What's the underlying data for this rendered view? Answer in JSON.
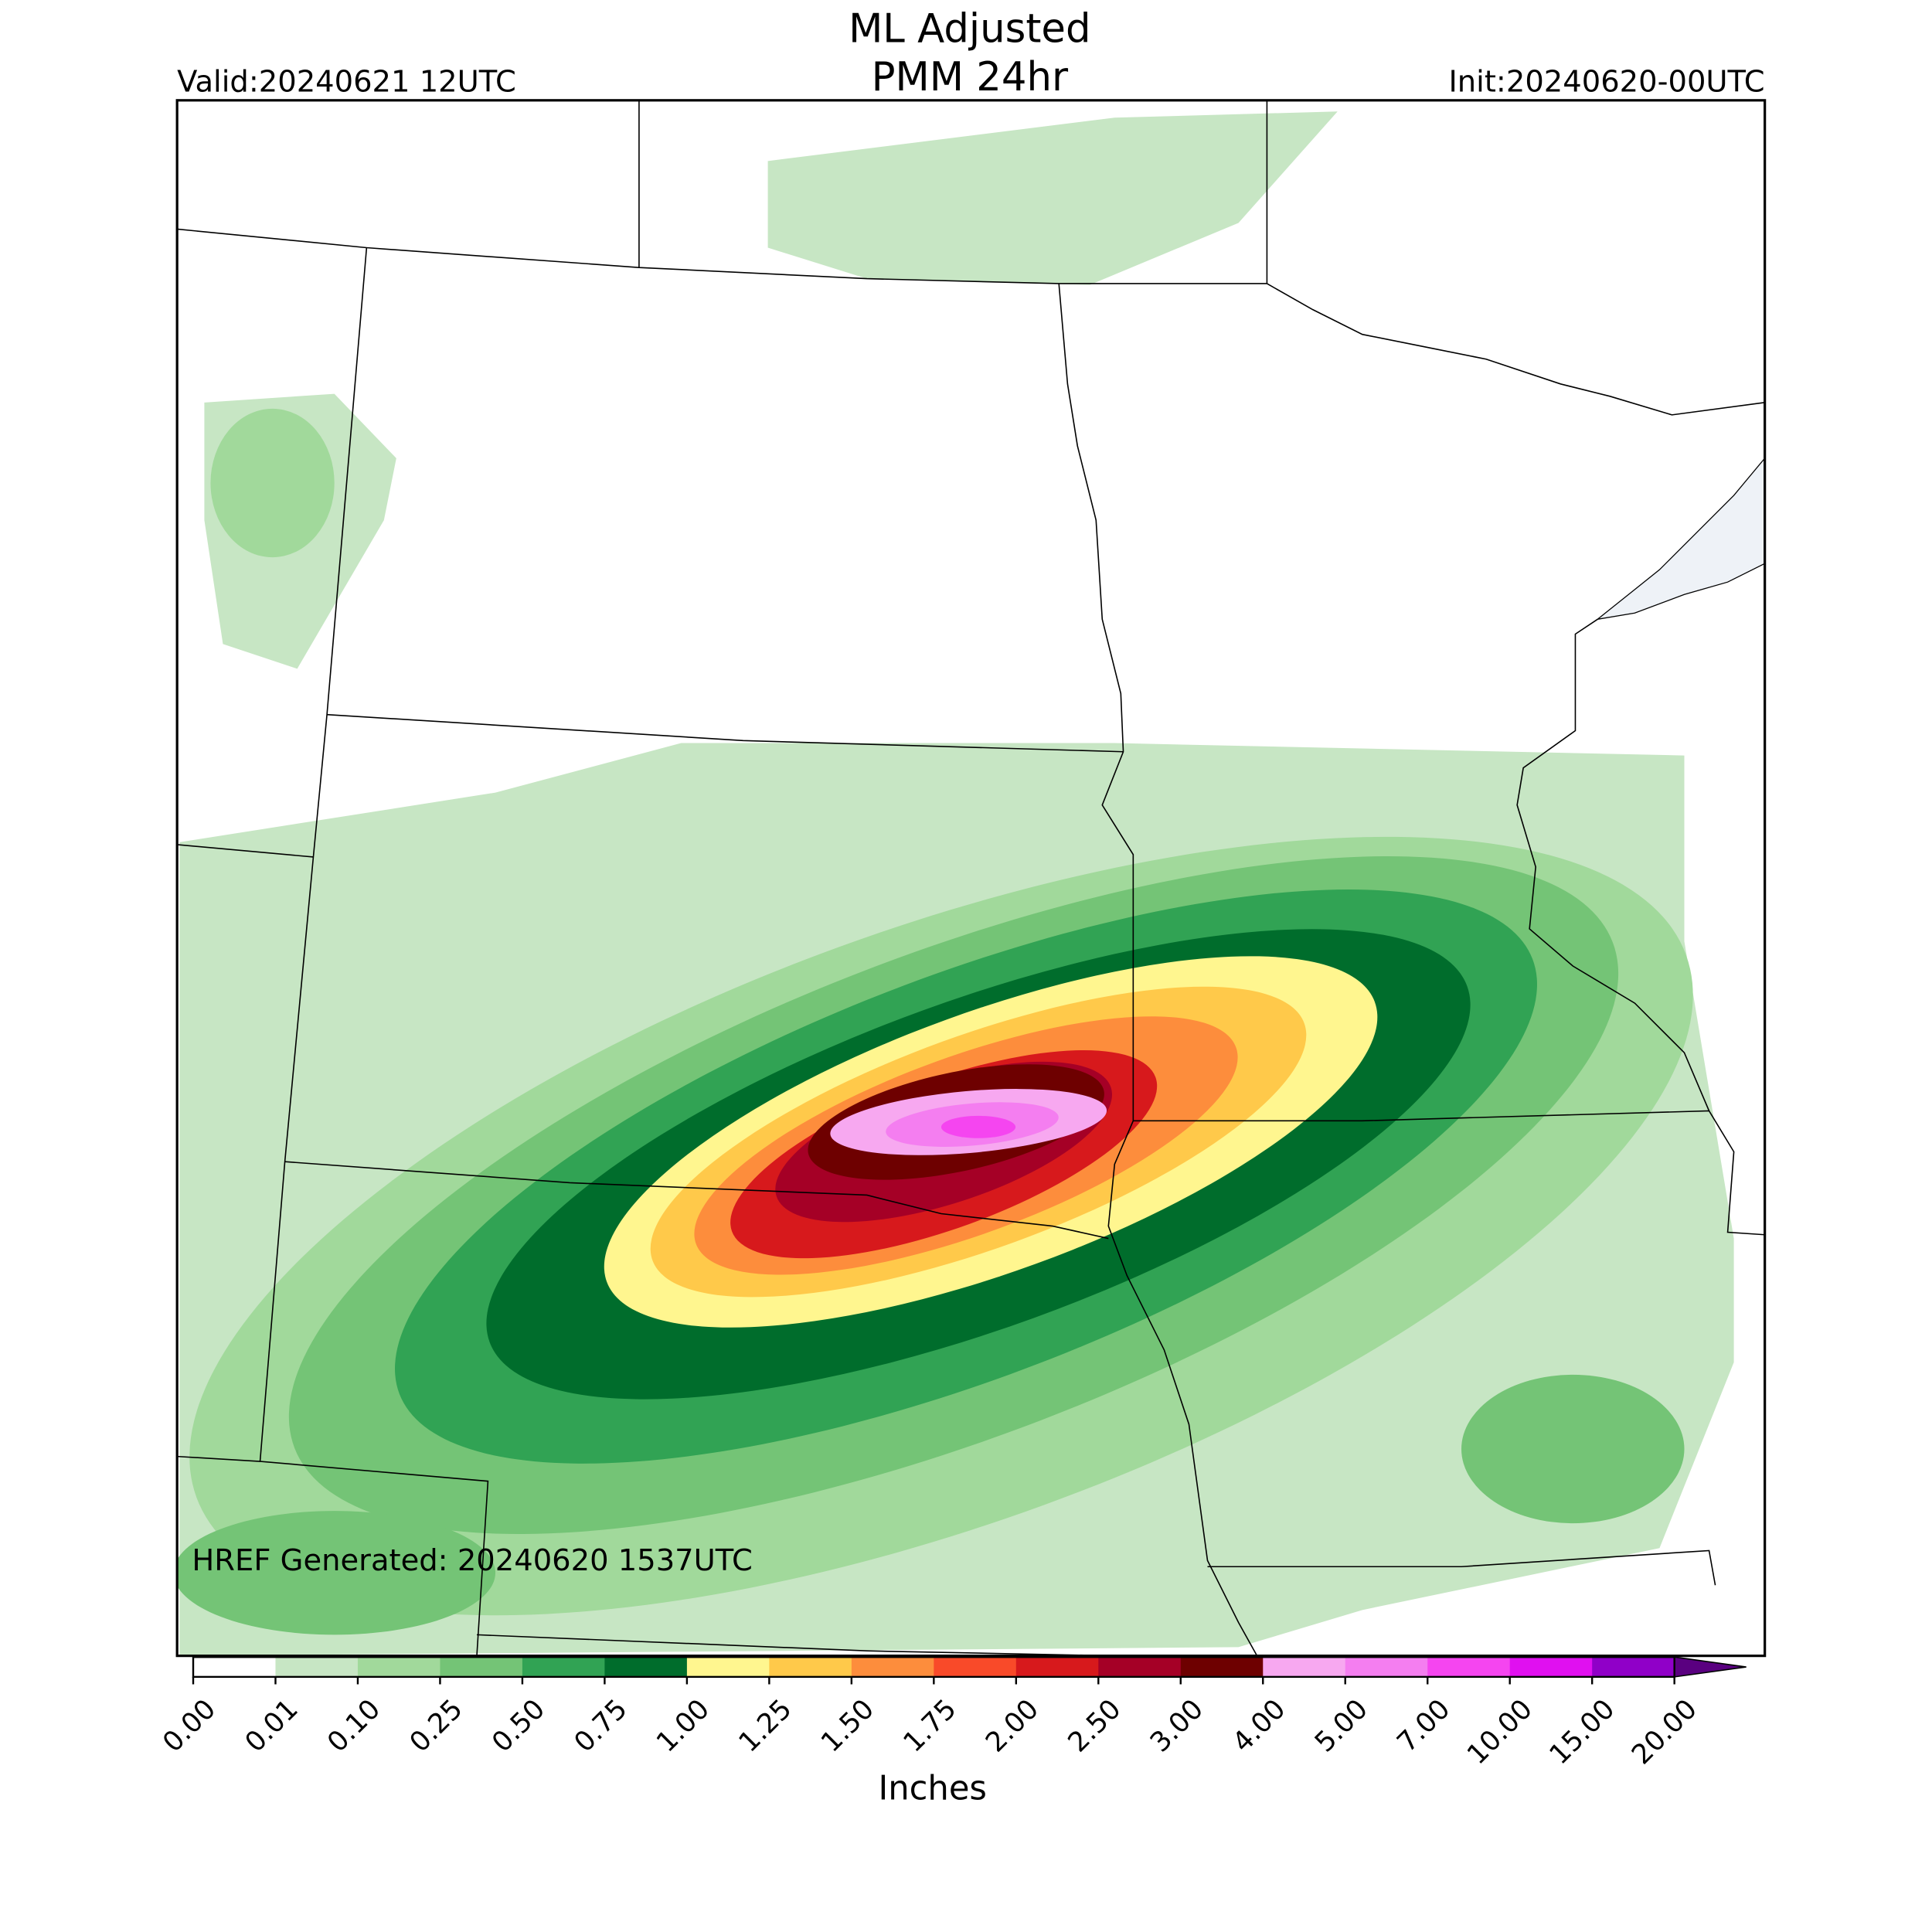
{
  "header": {
    "title_lines": [
      "ML Adjusted",
      "PMM 24hr"
    ],
    "valid": "Valid:20240621 12UTC",
    "init": "Init:20240620-00UTC"
  },
  "map": {
    "annotation": "HREF Generated: 20240620 1537UTC"
  },
  "colorbar": {
    "levels": [
      {
        "value": 0,
        "label": "0.00"
      },
      {
        "value": 0.01,
        "label": "0.01"
      },
      {
        "value": 0.1,
        "label": "0.10"
      },
      {
        "value": 0.25,
        "label": "0.25"
      },
      {
        "value": 0.5,
        "label": "0.50"
      },
      {
        "value": 0.75,
        "label": "0.75"
      },
      {
        "value": 1,
        "label": "1.00"
      },
      {
        "value": 1.25,
        "label": "1.25"
      },
      {
        "value": 1.5,
        "label": "1.50"
      },
      {
        "value": 1.75,
        "label": "1.75"
      },
      {
        "value": 2,
        "label": "2.00"
      },
      {
        "value": 2.5,
        "label": "2.50"
      },
      {
        "value": 3,
        "label": "3.00"
      },
      {
        "value": 4,
        "label": "4.00"
      },
      {
        "value": 5,
        "label": "5.00"
      },
      {
        "value": 7,
        "label": "7.00"
      },
      {
        "value": 10,
        "label": "10.00"
      },
      {
        "value": 15,
        "label": "15.00"
      },
      {
        "value": 20,
        "label": "20.00"
      }
    ],
    "colors": [
      "#ffffff",
      "#c7e6c4",
      "#a1d99b",
      "#74c476",
      "#31a354",
      "#006d2c",
      "#fff68f",
      "#ffc94a",
      "#fd8d3c",
      "#f94a29",
      "#d7191c",
      "#a50026",
      "#6e0000",
      "#f7a8f0",
      "#f47ef0",
      "#f545f0",
      "#e010f0",
      "#9000c8"
    ],
    "extend_color": "#5a0080",
    "label": "Inches"
  }
}
